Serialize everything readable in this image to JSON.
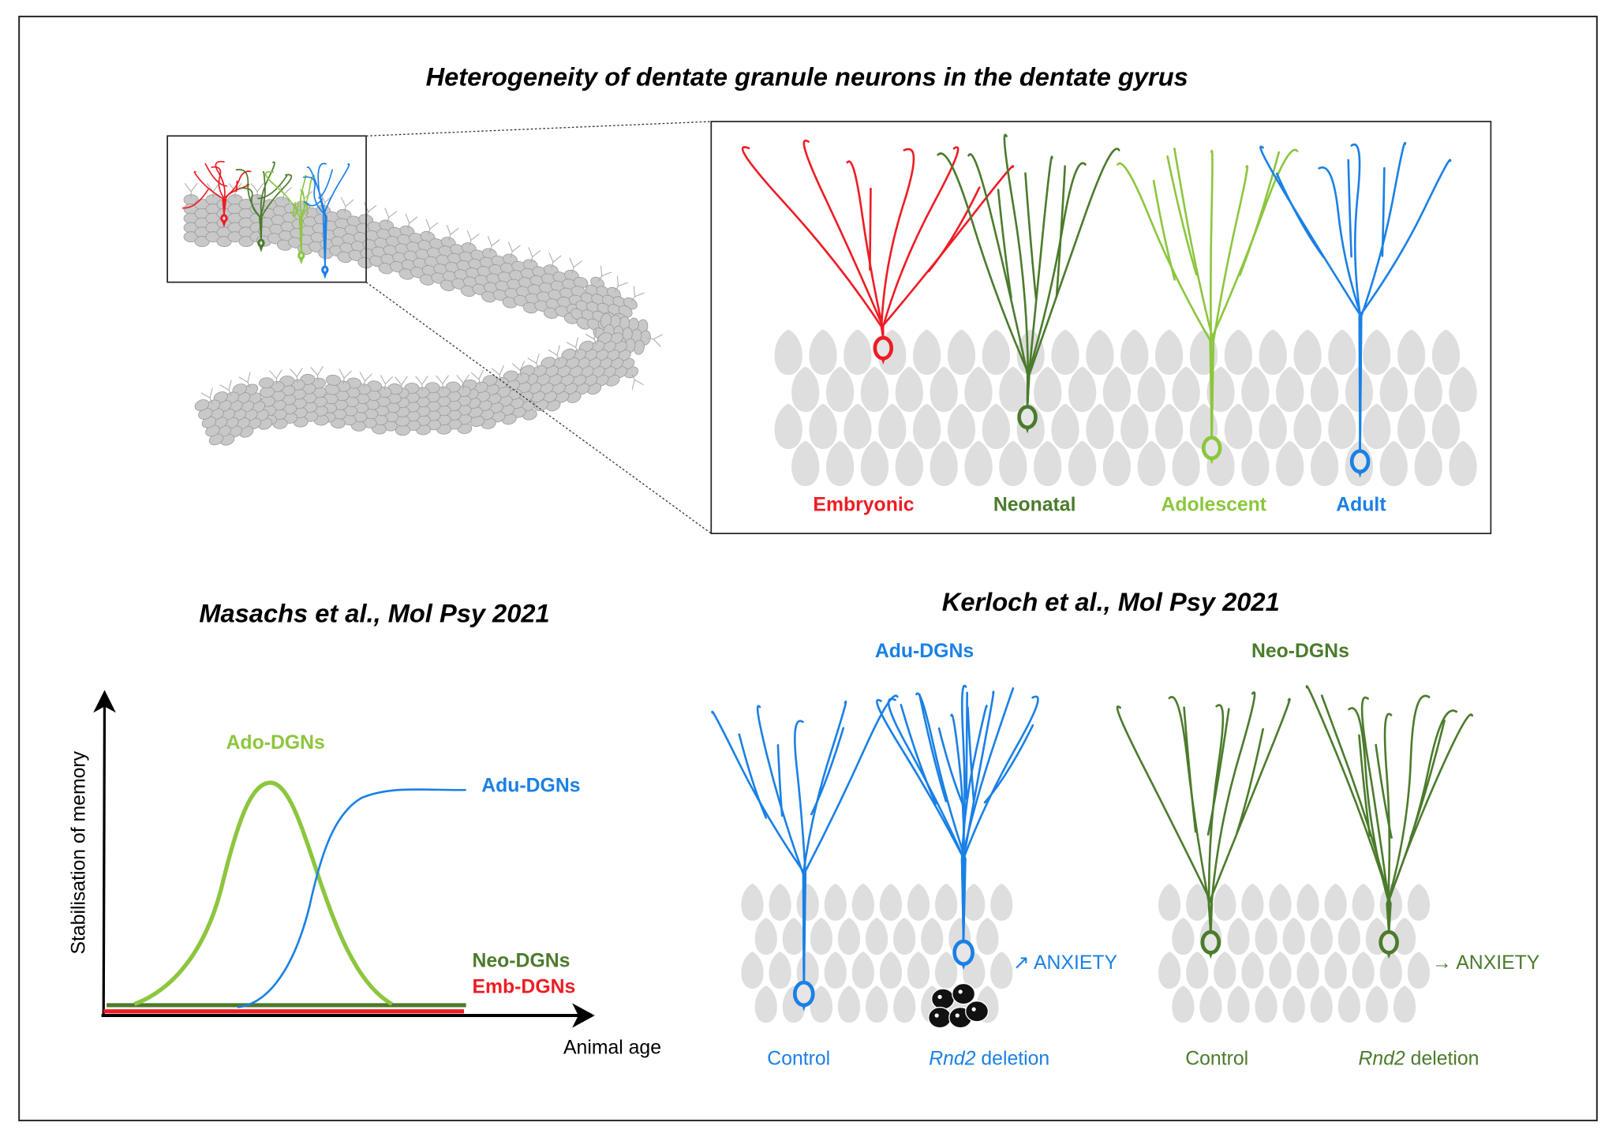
{
  "title": "Heterogeneity of dentate granule neurons in the dentate gyrus",
  "colors": {
    "embryonic": "#ee1c24",
    "neonatal": "#4b7b2c",
    "adolescent": "#8cc63f",
    "adult": "#1a80e5",
    "cells": "#dedede",
    "gyrus_cells": "#c8c8c8"
  },
  "zoom_panel": {
    "labels": [
      "Embryonic",
      "Neonatal",
      "Adolescent",
      "Adult"
    ]
  },
  "left_panel": {
    "citation": "Masachs et al., Mol Psy 2021",
    "y_axis_label": "Stabilisation of memory",
    "x_axis_label": "Animal age",
    "series_labels": {
      "ado": "Ado-DGNs",
      "adu": "Adu-DGNs",
      "neo": "Neo-DGNs",
      "emb": "Emb-DGNs"
    }
  },
  "right_panel": {
    "citation": "Kerloch et al., Mol Psy 2021",
    "groups": [
      {
        "title": "Adu-DGNs",
        "control": "Control",
        "deletion_gene": "Rnd2",
        "deletion_text": " deletion",
        "effect": "↗ ANXIETY"
      },
      {
        "title": "Neo-DGNs",
        "control": "Control",
        "deletion_gene": "Rnd2",
        "deletion_text": " deletion",
        "effect": "→ ANXIETY"
      }
    ]
  }
}
